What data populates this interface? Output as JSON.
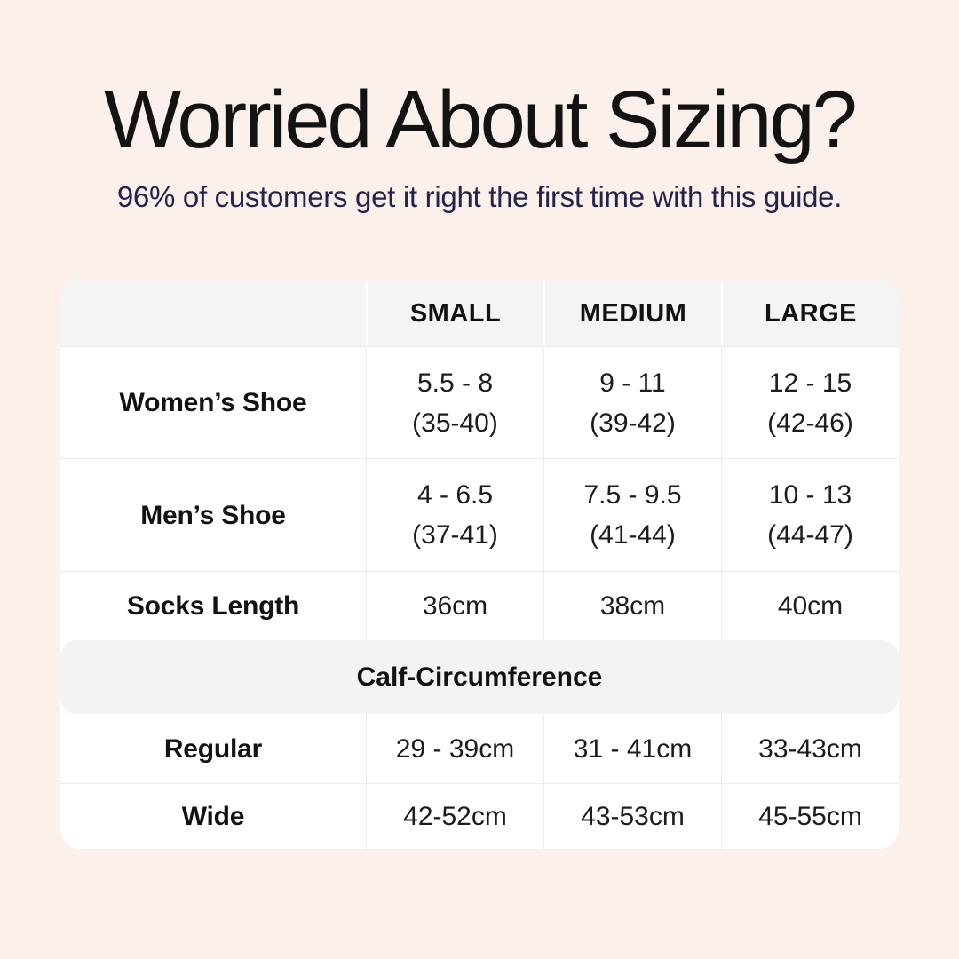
{
  "theme": {
    "bg": "#fcf1ea",
    "surface": "#ffffff",
    "head-bg": "#f5f4f4",
    "banner-bg": "#f3f3f2",
    "divider": "#ebebeb",
    "ink": "#161616",
    "subtitle-ink": "#23234d"
  },
  "header": {
    "title": "Worried About Sizing?",
    "subtitle": "96% of customers get it right the first time with this guide."
  },
  "table": {
    "headers": {
      "small": "SMALL",
      "medium": "MEDIUM",
      "large": "LARGE"
    },
    "rows": [
      {
        "label": "Women’s Shoe",
        "small": [
          "5.5 - 8",
          "(35-40)"
        ],
        "medium": [
          "9 - 11",
          "(39-42)"
        ],
        "large": [
          "12 - 15",
          "(42-46)"
        ]
      },
      {
        "label": "Men’s Shoe",
        "small": [
          "4 - 6.5",
          "(37-41)"
        ],
        "medium": [
          "7.5 - 9.5",
          "(41-44)"
        ],
        "large": [
          "10 - 13",
          "(44-47)"
        ]
      },
      {
        "label": "Socks Length",
        "small": [
          "36cm"
        ],
        "medium": [
          "38cm"
        ],
        "large": [
          "40cm"
        ]
      }
    ],
    "banner": "Calf-Circumference",
    "calf_rows": [
      {
        "label": "Regular",
        "small": "29 - 39cm",
        "medium": "31 - 41cm",
        "large": "33-43cm"
      },
      {
        "label": "Wide",
        "small": "42-52cm",
        "medium": "43-53cm",
        "large": "45-55cm"
      }
    ]
  },
  "chart_data": {
    "type": "table",
    "title": "Worried About Sizing?",
    "subtitle": "96% of customers get it right the first time with this guide.",
    "columns": [
      "",
      "SMALL",
      "MEDIUM",
      "LARGE"
    ],
    "rows": [
      [
        "Women’s Shoe",
        "5.5 - 8 (35-40)",
        "9 - 11 (39-42)",
        "12 - 15 (42-46)"
      ],
      [
        "Men’s Shoe",
        "4 - 6.5 (37-41)",
        "7.5 - 9.5 (41-44)",
        "10 - 13 (44-47)"
      ],
      [
        "Socks Length",
        "36cm",
        "38cm",
        "40cm"
      ],
      [
        "Calf-Circumference (section header)",
        "",
        "",
        ""
      ],
      [
        "Regular",
        "29 - 39cm",
        "31 - 41cm",
        "33-43cm"
      ],
      [
        "Wide",
        "42-52cm",
        "43-53cm",
        "45-55cm"
      ]
    ],
    "layout_hints": {
      "section_banner_after_row": 2,
      "grid": "light gray dividers",
      "header_row_background": "#f5f4f4"
    }
  }
}
